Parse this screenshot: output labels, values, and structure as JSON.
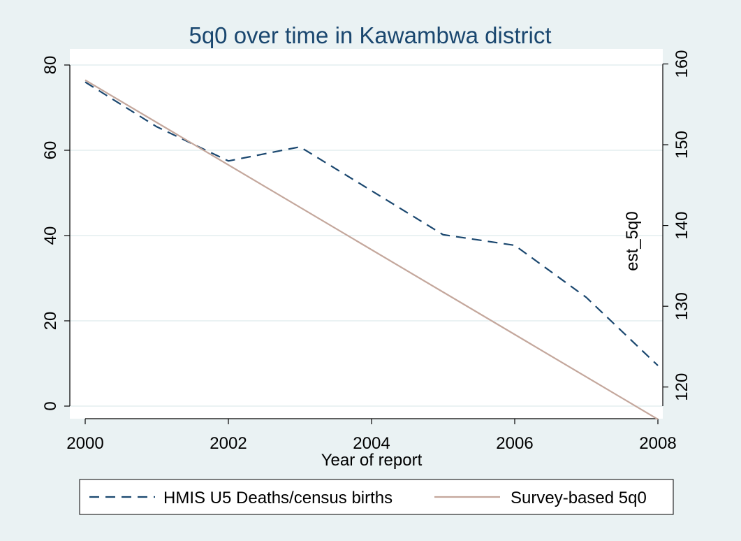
{
  "chart_data": {
    "type": "line",
    "title": "5q0 over time in Kawambwa district",
    "xlabel": "Year of report",
    "ylabel_left": "",
    "ylabel_right": "est_5q0",
    "xlim": [
      2000,
      2008
    ],
    "ylim_left": [
      0,
      80
    ],
    "ylim_right": [
      116,
      160
    ],
    "x_ticks": [
      "2000",
      "2002",
      "2004",
      "2006",
      "2008"
    ],
    "y_ticks_left": [
      "0",
      "20",
      "40",
      "60",
      "80"
    ],
    "y_ticks_right": [
      "120",
      "130",
      "140",
      "150",
      "160"
    ],
    "grid": true,
    "legend_position": "bottom",
    "series": [
      {
        "name": "HMIS U5 Deaths/census births",
        "axis": "left",
        "style": "dashed",
        "color": "#1a476f",
        "x": [
          2000,
          2001,
          2002,
          2003,
          2004,
          2005,
          2006,
          2007,
          2008
        ],
        "y": [
          76,
          65.5,
          57.5,
          60.8,
          50.5,
          40.2,
          37.7,
          25.5,
          9.5
        ]
      },
      {
        "name": "Survey-based 5q0",
        "axis": "right",
        "style": "solid",
        "color": "#c4a79c",
        "x": [
          2000,
          2008
        ],
        "y": [
          158,
          116
        ]
      }
    ]
  }
}
